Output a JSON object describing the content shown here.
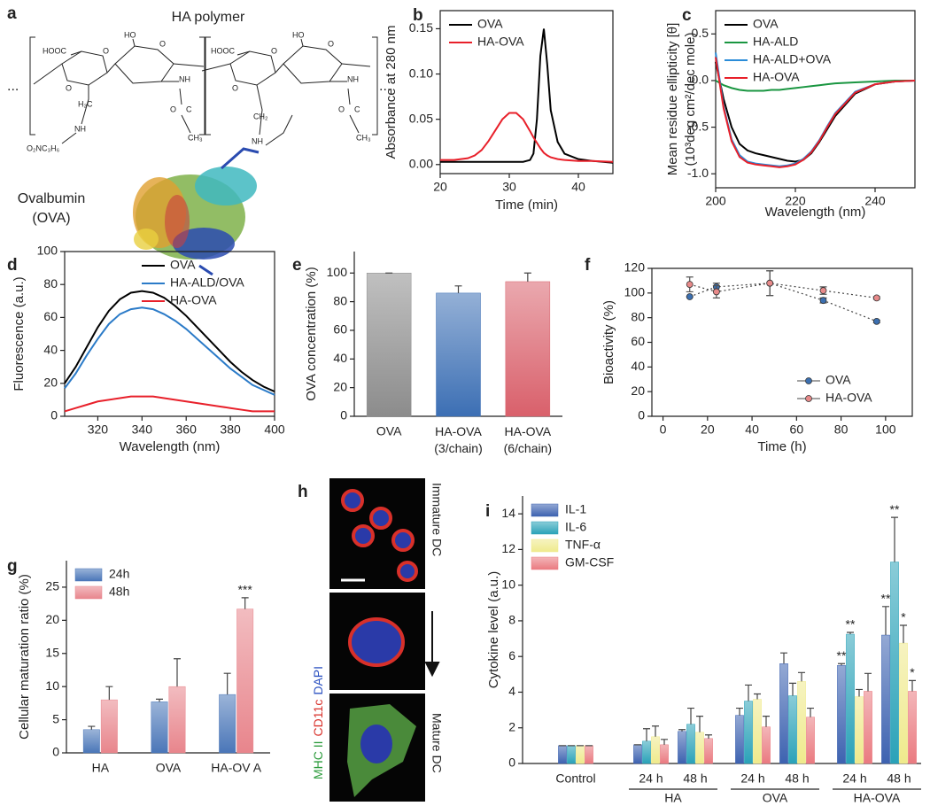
{
  "panel_a": {
    "label": "a",
    "title": "HA polymer",
    "protein": [
      "Ovalbumin",
      "(OVA)"
    ],
    "ellipses": [
      "...",
      "..."
    ],
    "atoms": [
      "HOOC",
      "HO",
      "O",
      "O",
      "O",
      "H₂C",
      "NH",
      "O₂NC₃H₆",
      "NH",
      "O",
      "C",
      "CH₃",
      "HOOC",
      "HO",
      "O",
      "O",
      "O",
      "CH₂",
      "NH",
      "NH",
      "O",
      "C",
      "CH₃"
    ]
  },
  "panel_h": {
    "label": "h",
    "stains": [
      "MHC II",
      "CD11c",
      "DAPI"
    ],
    "states": [
      "Immature DC",
      "Mature DC"
    ]
  },
  "chart_data": [
    {
      "label": "b",
      "type": "line",
      "x_label": "Time (min)",
      "y_label": "Absorbance at 280 nm",
      "x": [
        20,
        22,
        24,
        25,
        26,
        27,
        28,
        29,
        30,
        31,
        32,
        33,
        33.5,
        34,
        34.5,
        35,
        35.5,
        36,
        37,
        38,
        40,
        42,
        45
      ],
      "series": [
        {
          "name": "OVA",
          "color": "#000000",
          "values": [
            0.003,
            0.003,
            0.003,
            0.003,
            0.003,
            0.003,
            0.003,
            0.003,
            0.003,
            0.003,
            0.003,
            0.005,
            0.012,
            0.05,
            0.12,
            0.15,
            0.11,
            0.06,
            0.025,
            0.012,
            0.006,
            0.004,
            0.002
          ]
        },
        {
          "name": "HA-OVA",
          "color": "#e8202a",
          "values": [
            0.005,
            0.005,
            0.007,
            0.01,
            0.016,
            0.026,
            0.038,
            0.05,
            0.057,
            0.057,
            0.05,
            0.037,
            0.03,
            0.024,
            0.018,
            0.013,
            0.01,
            0.008,
            0.006,
            0.005,
            0.004,
            0.004,
            0.003
          ]
        }
      ],
      "xlim": [
        20,
        45
      ],
      "xticks": [
        20,
        30,
        40
      ],
      "ylim": [
        -0.01,
        0.17
      ],
      "yticks": [
        {
          "value": 0,
          "label": "0.00"
        },
        0.05,
        {
          "value": 0.1,
          "label": "0.10"
        },
        0.15
      ],
      "legend": "upper left",
      "frame": true
    },
    {
      "label": "c",
      "type": "line",
      "x_label": "Wavelength (nm)",
      "y_label": [
        "Mean residue ellipticity [θ]",
        "(10³deg cm²/dec mole)"
      ],
      "x": [
        200,
        202,
        204,
        206,
        208,
        210,
        212,
        214,
        216,
        218,
        220,
        222,
        224,
        226,
        228,
        230,
        235,
        240,
        245,
        250
      ],
      "series": [
        {
          "name": "OVA",
          "color": "#000000",
          "values": [
            0.2,
            -0.2,
            -0.5,
            -0.68,
            -0.75,
            -0.78,
            -0.8,
            -0.82,
            -0.84,
            -0.86,
            -0.87,
            -0.85,
            -0.78,
            -0.66,
            -0.52,
            -0.38,
            -0.14,
            -0.04,
            -0.01,
            0
          ]
        },
        {
          "name": "HA-ALD",
          "color": "#1a9641",
          "values": [
            0,
            -0.05,
            -0.08,
            -0.1,
            -0.11,
            -0.11,
            -0.11,
            -0.1,
            -0.1,
            -0.09,
            -0.08,
            -0.07,
            -0.06,
            -0.05,
            -0.04,
            -0.03,
            -0.02,
            -0.01,
            0,
            0
          ]
        },
        {
          "name": "HA-ALD+OVA",
          "color": "#2b8cd8",
          "values": [
            0.3,
            -0.28,
            -0.63,
            -0.8,
            -0.87,
            -0.89,
            -0.9,
            -0.91,
            -0.92,
            -0.91,
            -0.89,
            -0.84,
            -0.76,
            -0.64,
            -0.49,
            -0.35,
            -0.12,
            -0.04,
            -0.01,
            0
          ]
        },
        {
          "name": "HA-OVA",
          "color": "#e8202a",
          "values": [
            0.25,
            -0.3,
            -0.65,
            -0.82,
            -0.88,
            -0.9,
            -0.91,
            -0.92,
            -0.93,
            -0.92,
            -0.9,
            -0.85,
            -0.77,
            -0.65,
            -0.5,
            -0.36,
            -0.13,
            -0.04,
            -0.01,
            0
          ]
        }
      ],
      "xlim": [
        200,
        250
      ],
      "xticks": [
        200,
        220,
        240
      ],
      "ylim": [
        -1.15,
        0.75
      ],
      "yticks": [
        {
          "value": -1,
          "label": "-1.0"
        },
        -0.5,
        {
          "value": 0,
          "label": "0.0"
        },
        0.5
      ],
      "legend": "upper left",
      "frame": true
    },
    {
      "label": "d",
      "type": "line",
      "x_label": "Wavelength (nm)",
      "y_label": "Fluorescence (a.u.)",
      "x": [
        305,
        310,
        315,
        320,
        325,
        330,
        335,
        340,
        345,
        350,
        355,
        360,
        365,
        370,
        375,
        380,
        385,
        390,
        395,
        400
      ],
      "series": [
        {
          "name": "OVA",
          "color": "#000000",
          "values": [
            20,
            30,
            42,
            54,
            64,
            71,
            75,
            76,
            75,
            72,
            67,
            61,
            54,
            47,
            40,
            33,
            27,
            22,
            18,
            15
          ]
        },
        {
          "name": "HA-ALD/OVA",
          "color": "#2b7bc8",
          "values": [
            17,
            26,
            37,
            47,
            56,
            62,
            65,
            66,
            65,
            62,
            58,
            53,
            47,
            41,
            35,
            29,
            24,
            19,
            16,
            13
          ]
        },
        {
          "name": "HA-OVA",
          "color": "#e8202a",
          "values": [
            3,
            5,
            7,
            9,
            10,
            11,
            12,
            12,
            12,
            11,
            10,
            9,
            8,
            7,
            6,
            5,
            4,
            3,
            3,
            3
          ]
        }
      ],
      "xlim": [
        305,
        400
      ],
      "xticks": [
        320,
        340,
        360,
        380,
        400
      ],
      "ylim": [
        0,
        100
      ],
      "yticks": [
        0,
        20,
        40,
        60,
        80,
        100
      ],
      "legend": "upper right",
      "frame": true
    },
    {
      "label": "e",
      "type": "bar",
      "y_label": "OVA concentration (%)",
      "categories": [
        "OVA",
        [
          "HA-OVA",
          "(3/chain)"
        ],
        [
          "HA-OVA",
          "(6/chain)"
        ]
      ],
      "values": [
        100,
        86,
        94
      ],
      "errors": [
        0,
        5,
        6
      ],
      "colors": [
        "#8c8c8c",
        "#3c6fb4",
        "#d9606b"
      ],
      "ylim": [
        0,
        115
      ],
      "yticks": [
        0,
        20,
        40,
        60,
        80,
        100
      ],
      "frame": false
    },
    {
      "label": "f",
      "type": "scatter",
      "x_label": "Time (h)",
      "y_label": "Bioactivity (%)",
      "x": [
        12,
        24,
        48,
        72,
        96
      ],
      "series": [
        {
          "name": "OVA",
          "color": "#3b6fb0",
          "values": [
            97,
            105,
            108,
            94,
            77
          ],
          "errors": [
            0,
            3,
            10,
            2,
            1
          ]
        },
        {
          "name": "HA-OVA",
          "color": "#e88a8a",
          "values": [
            107,
            101,
            108,
            102,
            96
          ],
          "errors": [
            6,
            5,
            10,
            3,
            1
          ]
        }
      ],
      "xlim": [
        -5,
        112
      ],
      "xticks": [
        0,
        20,
        40,
        60,
        80,
        100
      ],
      "ylim": [
        0,
        120
      ],
      "yticks": [
        0,
        20,
        40,
        60,
        80,
        100,
        120
      ],
      "legend": "lower right",
      "frame": true
    },
    {
      "label": "g",
      "type": "bar",
      "y_label": "Cellular maturation ratio (%)",
      "categories": [
        "HA",
        "OVA",
        "HA-OV A"
      ],
      "series": [
        {
          "name": "24h",
          "color": "#4a76b8",
          "values": [
            3.5,
            7.7,
            8.8
          ],
          "errors": [
            0.5,
            0.4,
            3.2
          ]
        },
        {
          "name": "48h",
          "color": "#e8858c",
          "values": [
            8,
            10,
            21.7
          ],
          "errors": [
            2,
            4.2,
            1.7
          ],
          "significance": [
            null,
            null,
            "***"
          ]
        }
      ],
      "ylim": [
        0,
        29
      ],
      "yticks": [
        0,
        5,
        10,
        15,
        20,
        25
      ],
      "legend": "upper left",
      "frame": false
    },
    {
      "label": "i",
      "type": "bar",
      "y_label": "Cytokine level (a.u.)",
      "categories": [
        "Control",
        "24 h",
        "48 h",
        "24 h",
        "48 h",
        "24 h",
        "48 h"
      ],
      "group_labels": [
        "HA",
        "OVA",
        "HA-OVA"
      ],
      "series": [
        {
          "name": "IL-1",
          "color": "#3d62b0",
          "values": [
            1,
            1.05,
            1.8,
            2.7,
            5.6,
            5.5,
            7.2
          ],
          "errors": [
            0,
            0,
            0.1,
            0.4,
            0.6,
            0.1,
            1.6
          ],
          "significance": [
            null,
            null,
            null,
            null,
            null,
            "**",
            "**"
          ]
        },
        {
          "name": "IL-6",
          "color": "#2aa2b8",
          "values": [
            1,
            1.25,
            2.2,
            3.5,
            3.8,
            7.25,
            11.3
          ],
          "errors": [
            0,
            0.7,
            0.9,
            0.9,
            0.7,
            0.1,
            2.5
          ],
          "significance": [
            null,
            null,
            null,
            null,
            null,
            "**",
            "**"
          ]
        },
        {
          "name": "TNF-α",
          "color": "#efea8c",
          "values": [
            1,
            1.5,
            1.75,
            3.6,
            4.6,
            3.75,
            6.75
          ],
          "errors": [
            0,
            0.6,
            0.9,
            0.3,
            0.5,
            0.4,
            1
          ],
          "significance": [
            null,
            null,
            null,
            null,
            null,
            null,
            "*"
          ]
        },
        {
          "name": "GM-CSF",
          "color": "#ea7a80",
          "values": [
            1,
            1.05,
            1.4,
            2.05,
            2.6,
            4.05,
            4.05
          ],
          "errors": [
            0,
            0.3,
            0.2,
            0.6,
            0.5,
            1,
            0.6
          ],
          "significance": [
            null,
            null,
            null,
            null,
            null,
            null,
            "*"
          ]
        }
      ],
      "ylim": [
        0,
        15
      ],
      "yticks": [
        0,
        2,
        4,
        6,
        8,
        10,
        12,
        14
      ],
      "legend": "upper left",
      "frame": false
    }
  ]
}
